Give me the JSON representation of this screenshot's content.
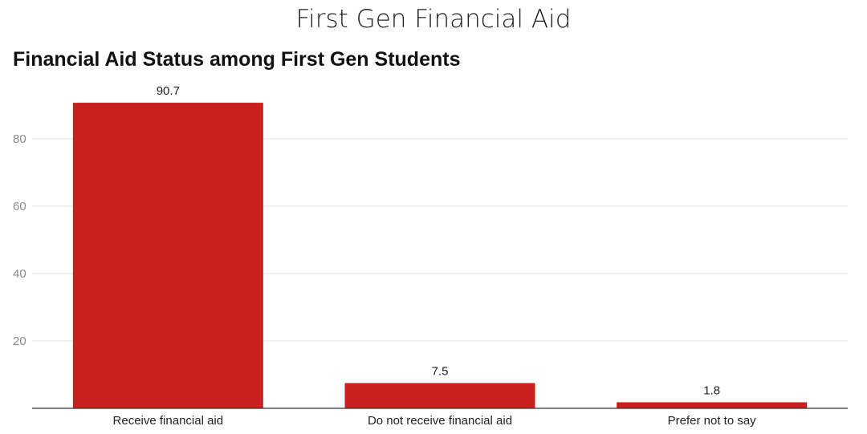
{
  "page": {
    "title": "First Gen Financial Aid"
  },
  "chart_data": {
    "type": "bar",
    "title": "Financial Aid Status among First Gen Students",
    "xlabel": "",
    "ylabel": "",
    "categories": [
      "Receive financial aid",
      "Do not receive financial aid",
      "Prefer not to say"
    ],
    "values": [
      90.7,
      7.5,
      1.8
    ],
    "data_labels": [
      "90.7",
      "7.5",
      "1.8"
    ],
    "yticks": [
      20,
      40,
      60,
      80
    ],
    "ylim": [
      0,
      95
    ],
    "grid": true,
    "bar_color": "#c91f1f",
    "grid_color": "#e6e6e6",
    "axis_color": "#333333"
  }
}
